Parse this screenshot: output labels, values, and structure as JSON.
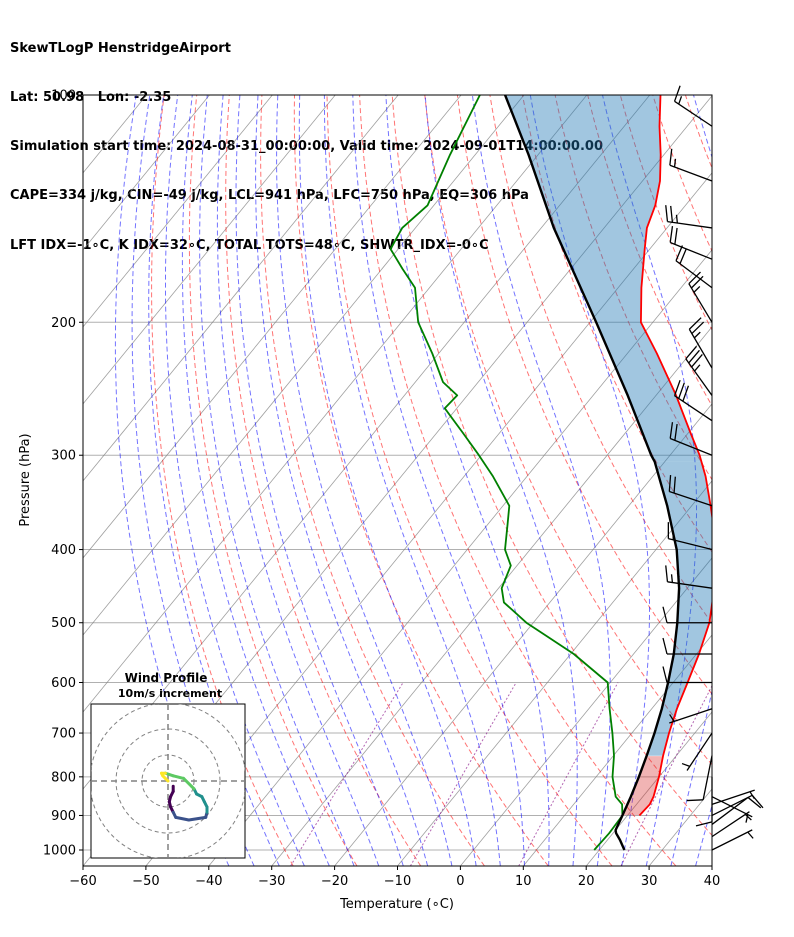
{
  "header": {
    "line1": "SkewTLogP HenstridgeAirport",
    "line2": "Lat: 50.98   Lon: -2.35",
    "line3": "Simulation start time: 2024-08-31_00:00:00, Valid time: 2024-09-01T14:00:00.00",
    "line4": "CAPE=334 j/kg, CIN=-49 j/kg, LCL=941 hPa, LFC=750 hPa, EQ=306 hPa",
    "line5": "LFT IDX=-1∘C, K IDX=32∘C, TOTAL TOTS=48∘C, SHWTR_IDX=-0∘C"
  },
  "inset": {
    "title": "Wind Profile",
    "subtitle": "10m/s increment"
  },
  "colors": {
    "temperature": "#ff0000",
    "dewpoint": "#008000",
    "parcel": "#000000",
    "cape_fill": "#1f77b4",
    "cin_fill": "#d62728",
    "dry_adiabat": "#ff0000",
    "moist_adiabat": "#0000ff",
    "mixing_ratio": "#800080",
    "isotherm": "#808080"
  },
  "chart_data": {
    "type": "line",
    "title": "",
    "xlabel": "Temperature (∘C)",
    "ylabel": "Pressure (hPa)",
    "xlim": [
      -60,
      40
    ],
    "ylim": [
      1050,
      100
    ],
    "y_scale": "log",
    "skew": true,
    "grid": true,
    "x_ticks": [
      -60,
      -50,
      -40,
      -30,
      -20,
      -10,
      0,
      10,
      20,
      30,
      40
    ],
    "x_tick_labels": [
      "−60",
      "−50",
      "−40",
      "−30",
      "−20",
      "−10",
      "0",
      "10",
      "20",
      "30",
      "40"
    ],
    "y_ticks": [
      100,
      200,
      300,
      400,
      500,
      600,
      700,
      800,
      900,
      1000
    ],
    "y_tick_labels": [
      "100",
      "200",
      "300",
      "400",
      "500",
      "600",
      "700",
      "800",
      "900",
      "1000"
    ],
    "series": [
      {
        "name": "temperature",
        "p": [
          900,
          870,
          850,
          800,
          750,
          700,
          650,
          600,
          550,
          500,
          450,
          400,
          370,
          350,
          320,
          300,
          280,
          250,
          220,
          200,
          180,
          160,
          150,
          140,
          130,
          120,
          110,
          100
        ],
        "t": [
          21.9,
          22.1,
          21.7,
          20.0,
          17.9,
          15.9,
          14.0,
          12.3,
          10.4,
          8.0,
          4.3,
          -0.6,
          -4.2,
          -7.0,
          -11.6,
          -15.3,
          -19.7,
          -26.8,
          -35.3,
          -41.9,
          -46.3,
          -50.8,
          -53.2,
          -54.8,
          -57.2,
          -60.5,
          -64.4,
          -68.3
        ]
      },
      {
        "name": "dewpoint",
        "p": [
          1000,
          950,
          900,
          870,
          850,
          800,
          750,
          700,
          650,
          600,
          550,
          500,
          470,
          450,
          420,
          400,
          370,
          350,
          320,
          300,
          280,
          260,
          250,
          240,
          220,
          200,
          180,
          170,
          160,
          150,
          140,
          120,
          100
        ],
        "t": [
          19.2,
          19.4,
          19.2,
          17.7,
          15.7,
          12.6,
          10.1,
          6.9,
          3.3,
          -0.4,
          -9.5,
          -21.1,
          -27.3,
          -29.5,
          -31.0,
          -34.0,
          -36.9,
          -39.0,
          -45.4,
          -50.4,
          -55.9,
          -61.9,
          -61.6,
          -65.6,
          -71.0,
          -77.3,
          -82.3,
          -86.7,
          -91.2,
          -92.1,
          -91.0,
          -94.0,
          -97.0
        ]
      },
      {
        "name": "parcel",
        "p": [
          1000,
          970,
          950,
          941,
          900,
          850,
          800,
          750,
          700,
          650,
          600,
          550,
          500,
          450,
          400,
          350,
          306,
          300,
          250,
          200,
          150,
          120,
          100
        ],
        "t": [
          24.0,
          22.0,
          20.5,
          20.0,
          19.2,
          18.1,
          16.8,
          15.3,
          13.6,
          11.6,
          9.2,
          6.4,
          2.9,
          -1.3,
          -6.7,
          -13.9,
          -21.6,
          -23.0,
          -34.5,
          -49.0,
          -68.0,
          -81.5,
          -93.0
        ]
      }
    ],
    "shading": [
      {
        "name": "cape",
        "p_range": [
          750,
          306
        ]
      },
      {
        "name": "cin",
        "p_range": [
          941,
          750
        ]
      },
      {
        "name": "upper-positive",
        "p_range": [
          306,
          100
        ]
      }
    ],
    "wind_barbs": {
      "p": [
        1000,
        960,
        925,
        900,
        870,
        850,
        800,
        750,
        700,
        650,
        600,
        550,
        500,
        450,
        400,
        350,
        300,
        270,
        250,
        230,
        200,
        180,
        165,
        150,
        130,
        110
      ],
      "u": [
        -2,
        -3,
        -4,
        -4,
        -3,
        -2,
        0,
        1,
        2,
        3,
        4,
        5,
        6,
        7,
        8,
        9,
        10,
        12,
        10,
        7,
        6,
        8,
        10,
        14,
        8,
        6
      ],
      "v": [
        -1,
        -2,
        -3,
        -2,
        -1,
        1,
        6,
        5,
        3,
        1,
        0,
        0,
        0,
        -1,
        -2,
        -3,
        -4,
        -8,
        -14,
        -12,
        -10,
        -6,
        -4,
        -2,
        -3,
        -4
      ]
    },
    "hodograph": {
      "title": "Wind Profile",
      "subtitle": "10m/s increment",
      "ring_step_ms": 10,
      "u": [
        0.0,
        -1.0,
        -2.0,
        -2.5,
        -1.0,
        2.0,
        6.0,
        9.0,
        10.0,
        11.0,
        13.0,
        14.0,
        15.0,
        15.0,
        14.5,
        8.0,
        3.0,
        2.0,
        1.0,
        0.5,
        1.0,
        2.0,
        2.0
      ],
      "v": [
        0.0,
        -1.0,
        -2.0,
        -3.0,
        -3.0,
        -2.0,
        -1.0,
        2.0,
        3.0,
        5.0,
        6.0,
        8.0,
        10.0,
        12.0,
        14.0,
        15.0,
        14.0,
        12.0,
        10.0,
        8.0,
        6.0,
        4.0,
        2.0
      ]
    }
  }
}
